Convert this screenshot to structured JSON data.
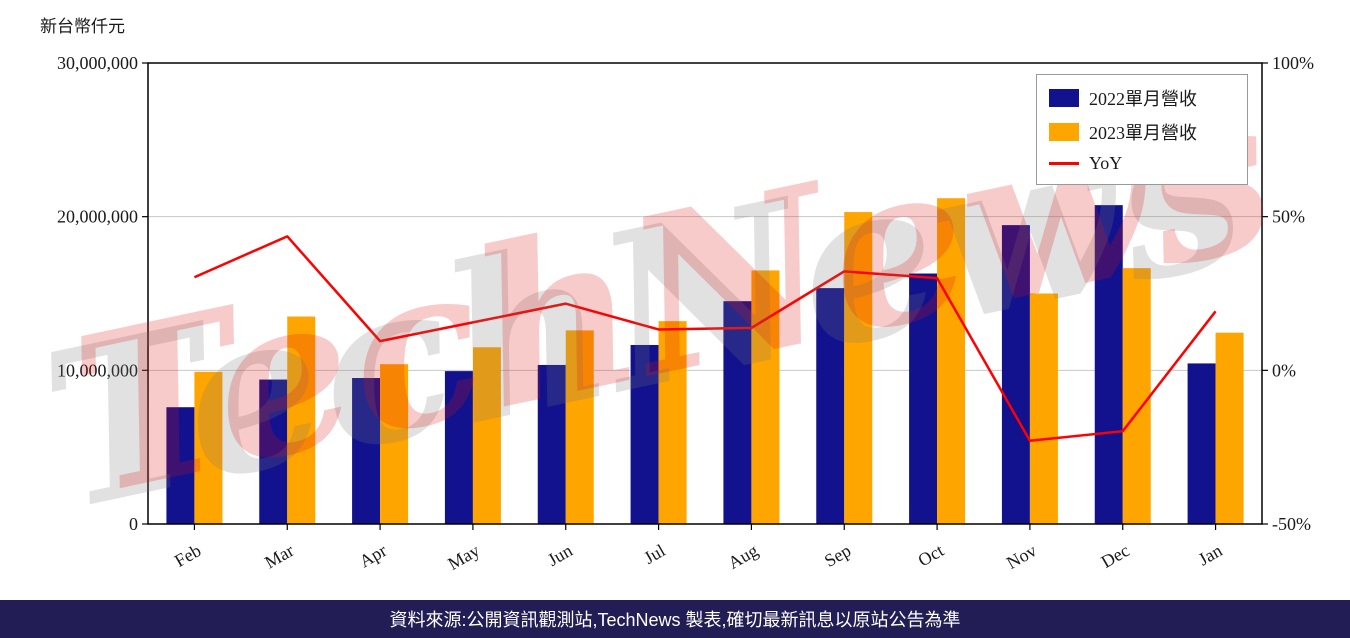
{
  "chart": {
    "unit_label": "新台幣仟元",
    "watermark": "TechNews",
    "footer": "資料來源:公開資訊觀測站,TechNews 製表,確切最新訊息以原站公告為準",
    "footer_bg": "#221e55"
  },
  "legend": {
    "items": [
      {
        "label": "2022單月營收",
        "type": "swatch",
        "color": "#12128e"
      },
      {
        "label": "2023單月營收",
        "type": "swatch",
        "color": "#ffa500"
      },
      {
        "label": "YoY",
        "type": "line",
        "color": "#ff0000"
      }
    ]
  },
  "chart_data": {
    "type": "bar",
    "categories": [
      "Feb",
      "Mar",
      "Apr",
      "May",
      "Jun",
      "Jul",
      "Aug",
      "Sep",
      "Oct",
      "Nov",
      "Dec",
      "Jan"
    ],
    "series": [
      {
        "name": "2022單月營收",
        "color": "#12128e",
        "values": [
          7600000,
          9400000,
          9500000,
          9950000,
          10350000,
          11650000,
          14500000,
          15350000,
          16300000,
          19450000,
          20750000,
          10450000
        ]
      },
      {
        "name": "2023單月營收",
        "color": "#ffa500",
        "values": [
          9900000,
          13500000,
          10400000,
          11500000,
          12600000,
          13200000,
          16500000,
          20300000,
          21200000,
          15000000,
          16650000,
          12450000
        ]
      }
    ],
    "line_series": {
      "name": "YoY",
      "color": "#ff0000",
      "axis": "right",
      "values": [
        30.3,
        43.6,
        9.5,
        15.6,
        21.7,
        13.3,
        13.8,
        32.2,
        30.0,
        -22.9,
        -19.8,
        19.2
      ]
    },
    "title": "",
    "xlabel": "",
    "ylabel": "新台幣仟元",
    "ylim": [
      0,
      30000000
    ],
    "yticks": [
      0,
      10000000,
      20000000,
      30000000
    ],
    "y2lim": [
      -50,
      100
    ],
    "y2ticks": [
      -50,
      0,
      50,
      100
    ],
    "grid": true,
    "legend_position": "upper right"
  }
}
